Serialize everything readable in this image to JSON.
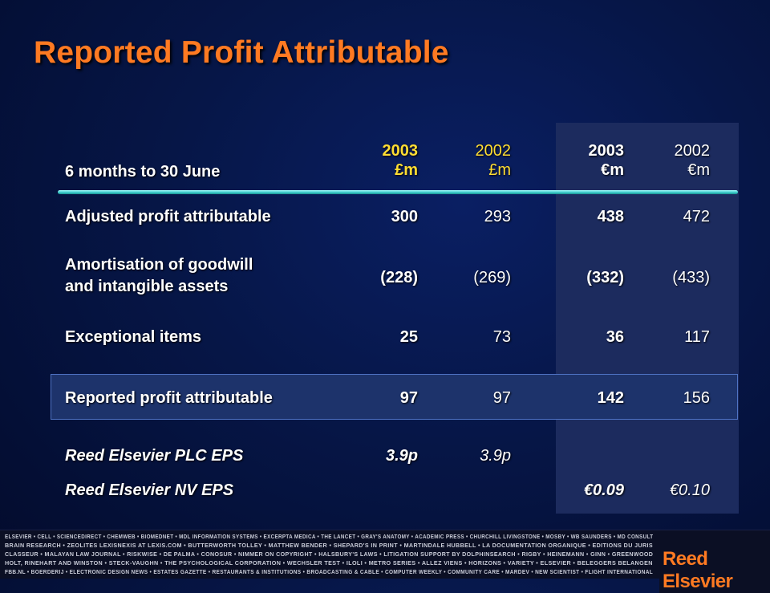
{
  "title": "Reported Profit Attributable",
  "header": {
    "period_label": "6 months to 30 June",
    "columns": [
      {
        "year": "2003",
        "unit": "£m"
      },
      {
        "year": "2002",
        "unit": "£m"
      },
      {
        "year": "2003",
        "unit": "€m"
      },
      {
        "year": "2002",
        "unit": "€m"
      }
    ]
  },
  "rows": {
    "adjusted": {
      "label": "Adjusted profit attributable",
      "values": [
        "300",
        "293",
        "438",
        "472"
      ]
    },
    "amortisation": {
      "label_line1": "Amortisation of goodwill",
      "label_line2": "and intangible assets",
      "values": [
        "(228)",
        "(269)",
        "(332)",
        "(433)"
      ]
    },
    "exceptional": {
      "label": "Exceptional items",
      "values": [
        "25",
        "73",
        "36",
        "117"
      ]
    },
    "reported": {
      "label": "Reported profit attributable",
      "values": [
        "97",
        "97",
        "142",
        "156"
      ]
    },
    "plc_eps": {
      "label": "Reed Elsevier PLC EPS",
      "values": [
        "3.9p",
        "3.9p",
        "",
        ""
      ]
    },
    "nv_eps": {
      "label": "Reed Elsevier NV EPS",
      "values": [
        "",
        "",
        "€0.09",
        "€0.10"
      ]
    }
  },
  "footer": {
    "lines": [
      "ELSEVIER • CELL • SCIENCEDIRECT • CHEMWEB • BIOMEDNET • MDL INFORMATION SYSTEMS • EXCERPTA MEDICA • THE LANCET • GRAY'S ANATOMY • ACADEMIC PRESS • CHURCHILL LIVINGSTONE • MOSBY • WB SAUNDERS • MD CONSULT",
      "BRAIN RESEARCH • ZEOLITES LEXISNEXIS AT LEXIS.COM • BUTTERWORTH TOLLEY • MATTHEW BENDER • SHEPARD'S IN PRINT • MARTINDALE HUBBELL • LA DOCUMENTATION ORGANIQUE • EDITIONS DU JURIS",
      "CLASSEUR • MALAYAN LAW JOURNAL • RISKWISE • DE PALMA • CONOSUR • NIMMER ON COPYRIGHT • HALSBURY'S LAWS • LITIGATION SUPPORT BY DOLPHINSEARCH • RIGBY • HEINEMANN • GINN • GREENWOOD",
      "HOLT, RINEHART AND WINSTON • STECK-VAUGHN • THE PSYCHOLOGICAL CORPORATION • WECHSLER TEST • ILOLI • METRO SERIES • ALLEZ VIENS • HORIZONS • VARIETY • ELSEVIER • BELEGGERS BELANGEN",
      "FBB.NL • BOERDERIJ • ELECTRONIC DESIGN NEWS • ESTATES GAZETTE • RESTAURANTS & INSTITUTIONS • BROADCASTING & CABLE • COMPUTER WEEKLY • COMMUNITY CARE • MARDEV • NEW SCIENTIST • FLIGHT INTERNATIONAL"
    ],
    "logo": "Reed Elsevier"
  }
}
